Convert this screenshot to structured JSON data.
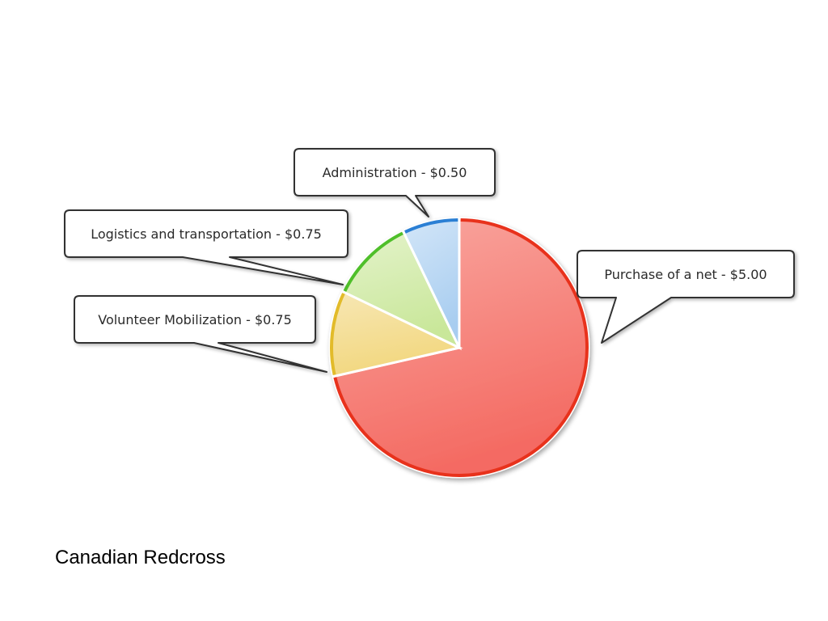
{
  "chart_data": {
    "type": "pie",
    "categories": [
      "Purchase of a net",
      "Volunteer Mobilization",
      "Logistics and transportation",
      "Administration"
    ],
    "values": [
      5.0,
      0.75,
      0.75,
      0.5
    ],
    "labels": [
      "Purchase of a net - $5.00",
      "Volunteer Mobilization - $0.75",
      "Logistics and transportation - $0.75",
      "Administration - $0.50"
    ],
    "colors": [
      {
        "fill": "#f46b63",
        "light": "#f9a8a1",
        "stroke": "#e8321e"
      },
      {
        "fill": "#f2d77e",
        "light": "#f7e7b4",
        "stroke": "#e2bb2a"
      },
      {
        "fill": "#c9e79a",
        "light": "#e4f3cb",
        "stroke": "#4fbf2a"
      },
      {
        "fill": "#a8cdf0",
        "light": "#d3e6f8",
        "stroke": "#2a7fd4"
      }
    ],
    "start": "12 o'clock",
    "direction": "clockwise",
    "legend": "none"
  },
  "caption": "Canadian Redcross"
}
